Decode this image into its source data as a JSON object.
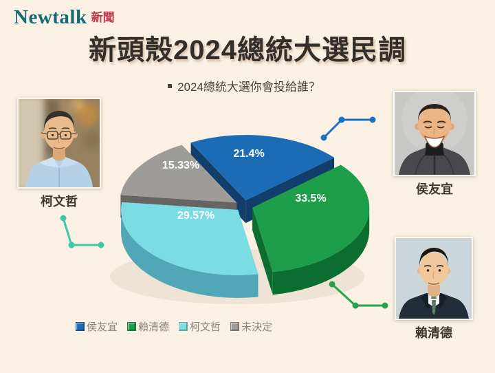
{
  "logo": {
    "brand": "Newtalk",
    "suffix": "新聞"
  },
  "title": "新頭殼2024總統大選民調",
  "subtitle": "2024總統大選你會投給誰？",
  "candidates": [
    {
      "name": "柯文哲",
      "position": "left"
    },
    {
      "name": "侯友宜",
      "position": "top-right"
    },
    {
      "name": "賴清德",
      "position": "bottom-right"
    }
  ],
  "chart_data": {
    "type": "pie",
    "title": "2024總統大選你會投給誰？",
    "labels": [
      "侯友宜",
      "賴清德",
      "柯文哲",
      "未決定"
    ],
    "values": [
      21.4,
      33.5,
      29.57,
      15.33
    ],
    "value_labels": [
      "21.4%",
      "33.5%",
      "29.57%",
      "15.33%"
    ],
    "colors": [
      "#1b6bb5",
      "#1e9d4b",
      "#7bdce4",
      "#9e9c99"
    ],
    "side_colors": [
      "#123e6b",
      "#0c6d31",
      "#51a7b5",
      "#676563"
    ],
    "style": "3d-exploded-pie",
    "start_angle_deg": -28,
    "legend_position": "bottom"
  },
  "colors": {
    "background": "#faf0e3",
    "title_text": "#332e29",
    "logo_teal": "#156a73",
    "logo_red": "#c23a4f",
    "legend_text": "#8b857d",
    "connector_hou": "#1c72c0",
    "connector_ko": "#3fc8a5",
    "connector_lai": "#28a24d"
  }
}
